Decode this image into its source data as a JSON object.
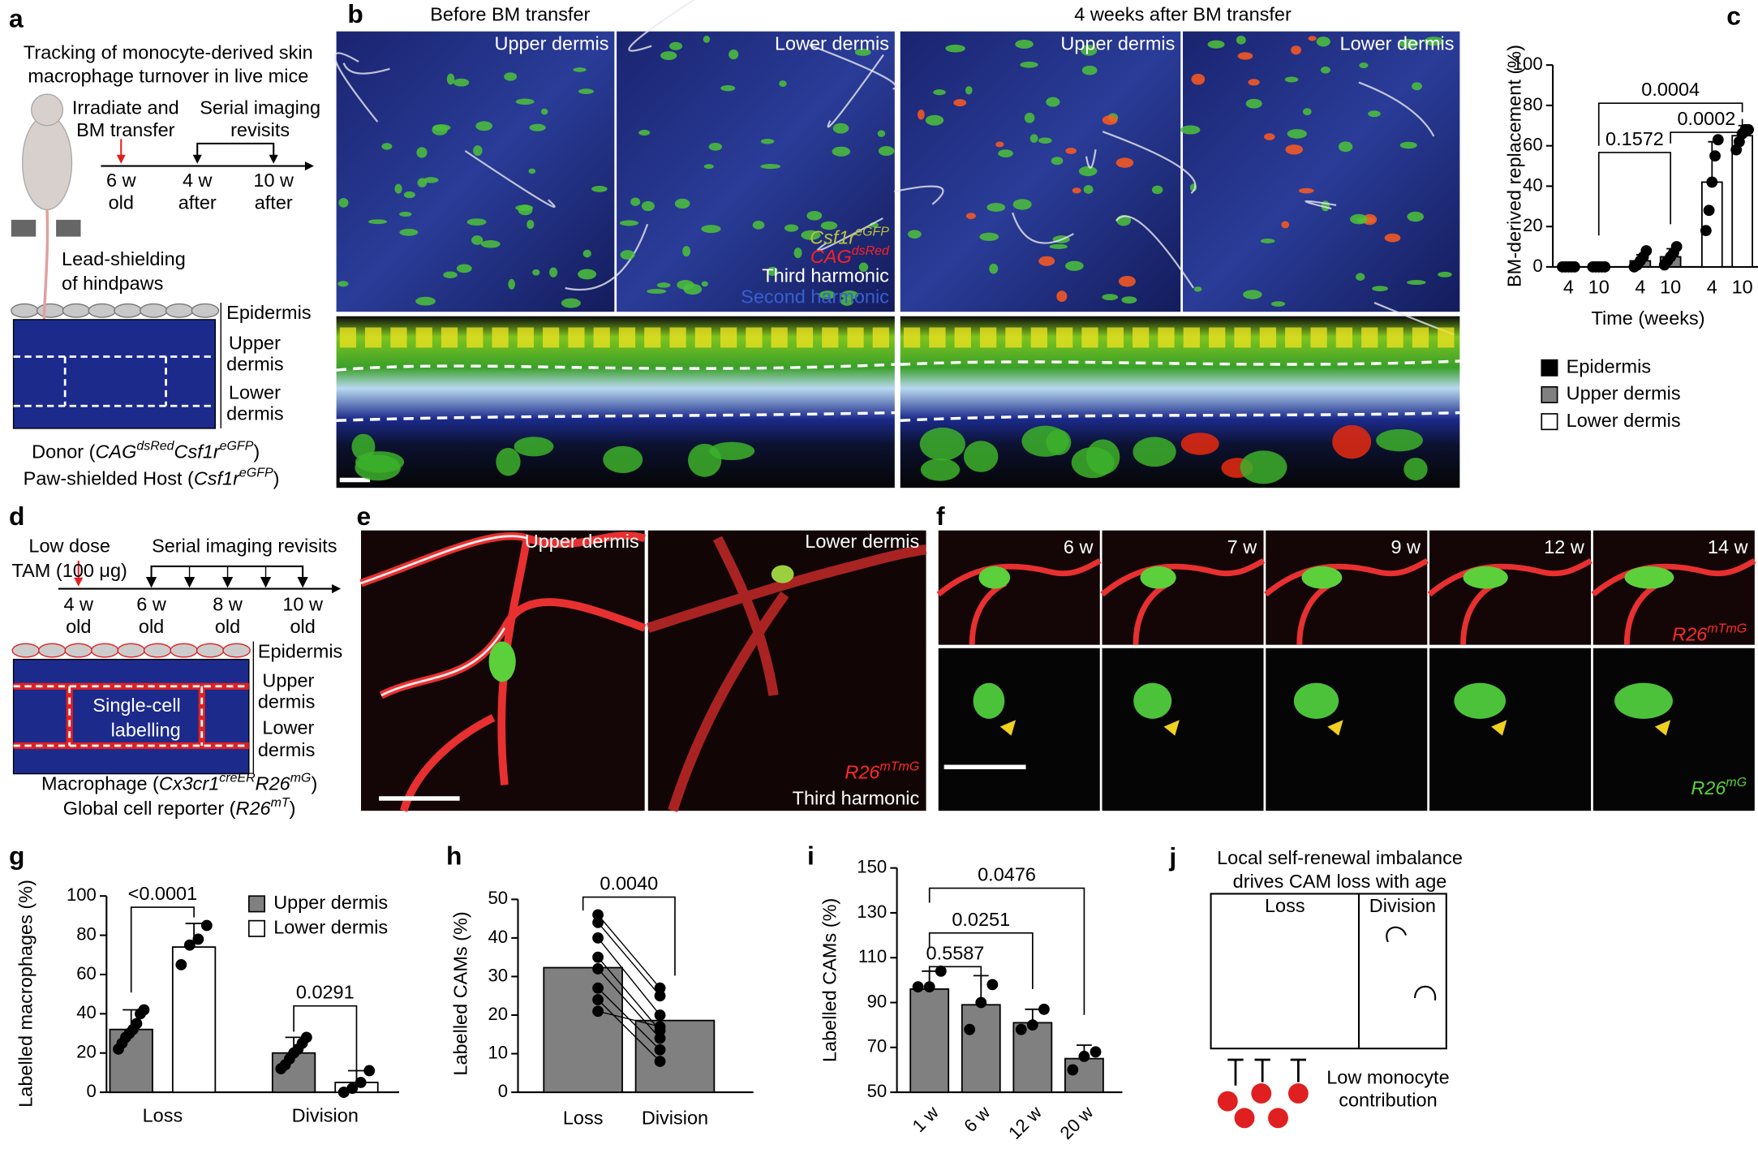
{
  "panels": {
    "a": {
      "letter": "a",
      "title": [
        "Tracking of monocyte-derived skin",
        "macrophage turnover in live mice"
      ],
      "step1": [
        "Irradiate and",
        "BM transfer"
      ],
      "step2": [
        "Serial imaging",
        "revisits"
      ],
      "timeline": [
        [
          "6 w",
          "old"
        ],
        [
          "4 w",
          "after"
        ],
        [
          "10 w",
          "after"
        ]
      ],
      "shield": [
        "Lead-shielding",
        "of hindpaws"
      ],
      "layers": [
        [
          "Epidermis"
        ],
        [
          "Upper",
          "dermis"
        ],
        [
          "Lower",
          "dermis"
        ]
      ],
      "donor": [
        [
          "Donor (",
          ""
        ],
        [
          "CAG",
          "i"
        ],
        [
          "dsRed",
          "si"
        ],
        [
          "Csf1r",
          "i"
        ],
        [
          "eGFP",
          "si"
        ],
        [
          ")",
          ""
        ]
      ],
      "host": [
        [
          "Paw-shielded Host (",
          ""
        ],
        [
          "Csf1r",
          "i"
        ],
        [
          "eGFP",
          "si"
        ],
        [
          ")",
          ""
        ]
      ]
    },
    "b": {
      "letter": "b",
      "headings": [
        "Before BM transfer",
        "4 weeks after BM transfer"
      ],
      "regions": [
        "Upper dermis",
        "Lower dermis",
        "Upper dermis",
        "Lower dermis"
      ],
      "channels": [
        {
          "label": [
            [
              "Csf1r",
              "i"
            ],
            [
              "eGFP",
              "si"
            ]
          ],
          "color": "#b8c43a"
        },
        {
          "label": [
            [
              "CAG",
              "i"
            ],
            [
              "dsRed",
              "si"
            ]
          ],
          "color": "#ff2020"
        },
        {
          "label": [
            [
              "Third harmonic",
              ""
            ]
          ],
          "color": "#ffffff"
        },
        {
          "label": [
            [
              "Second harmonic",
              ""
            ]
          ],
          "color": "#3a5fd0"
        }
      ]
    },
    "d": {
      "letter": "d",
      "dose": [
        "Low dose",
        "TAM (100 μg)"
      ],
      "revisits": "Serial imaging revisits",
      "timeline": [
        [
          "4 w",
          "old"
        ],
        [
          "6 w",
          "old"
        ],
        [
          "8 w",
          "old"
        ],
        [
          "10 w",
          "old"
        ]
      ],
      "layers": [
        [
          "Epidermis"
        ],
        [
          "Upper",
          "dermis"
        ],
        [
          "Lower",
          "dermis"
        ]
      ],
      "cell": [
        "Single-cell",
        "labelling"
      ],
      "macrophage": [
        [
          "Macrophage (",
          ""
        ],
        [
          "Cx3cr1",
          "i"
        ],
        [
          "creER",
          "si"
        ],
        [
          "R26",
          "i"
        ],
        [
          "mG",
          "si"
        ],
        [
          ")",
          ""
        ]
      ],
      "reporter": [
        [
          "Global cell reporter (",
          ""
        ],
        [
          "R26",
          "i"
        ],
        [
          "mT",
          "si"
        ],
        [
          ")",
          ""
        ]
      ]
    },
    "e": {
      "letter": "e",
      "regions": [
        "Upper dermis",
        "Lower dermis"
      ],
      "channels": [
        {
          "label": [
            [
              "R26",
              "i"
            ],
            [
              "mTmG",
              "si"
            ]
          ],
          "color": "#ff2a2a"
        },
        {
          "label": [
            [
              "Third harmonic",
              ""
            ]
          ],
          "color": "#ffffff"
        }
      ]
    },
    "f": {
      "letter": "f",
      "timepoints": [
        "6 w",
        "7 w",
        "9 w",
        "12 w",
        "14 w"
      ],
      "channels": [
        {
          "label": [
            [
              "R26",
              "i"
            ],
            [
              "mTmG",
              "si"
            ]
          ],
          "color": "#ff2a2a"
        },
        {
          "label": [
            [
              "R26",
              "i"
            ],
            [
              "mG",
              "si"
            ]
          ],
          "color": "#5cd03a"
        }
      ]
    },
    "j": {
      "letter": "j",
      "title": [
        "Local self-renewal imbalance",
        "drives CAM loss with age"
      ],
      "boxes": [
        "Loss",
        "Division"
      ],
      "note": [
        "Low monocyte",
        "contribution"
      ]
    }
  },
  "chart_data": [
    {
      "type": "bar",
      "letter": "c",
      "ylabel": "BM-derived replacement (%)",
      "xlabel": "Time (weeks)",
      "ylim": [
        0,
        100
      ],
      "yticks": [
        0,
        20,
        40,
        60,
        80,
        100
      ],
      "categories": [
        "4",
        "10"
      ],
      "series": [
        {
          "name": "Epidermis",
          "color": "#000000",
          "values": [
            0,
            0
          ],
          "errors": [
            0,
            0
          ],
          "points": [
            [
              0,
              0,
              0,
              0,
              0
            ],
            [
              0,
              0,
              0,
              0,
              0
            ]
          ]
        },
        {
          "name": "Upper dermis",
          "color": "#808080",
          "values": [
            3,
            5
          ],
          "errors": [
            3,
            4
          ],
          "points": [
            [
              0,
              1,
              3,
              5,
              8
            ],
            [
              1,
              3,
              5,
              7,
              10
            ]
          ]
        },
        {
          "name": "Lower dermis",
          "color": "#ffffff",
          "values": [
            42,
            65
          ],
          "errors": [
            20,
            5
          ],
          "points": [
            [
              18,
              28,
              42,
              55,
              63
            ],
            [
              58,
              62,
              66,
              68,
              68
            ]
          ]
        }
      ],
      "annotations": [
        "0.1572",
        "0.0004",
        "0.0002"
      ]
    },
    {
      "type": "bar",
      "letter": "g",
      "ylabel": "Labelled macrophages (%)",
      "ylim": [
        0,
        100
      ],
      "yticks": [
        0,
        20,
        40,
        60,
        80,
        100
      ],
      "categories": [
        "Loss",
        "Division"
      ],
      "series": [
        {
          "name": "Upper dermis",
          "color": "#808080",
          "values": [
            32,
            20
          ],
          "errors": [
            10,
            8
          ],
          "points": [
            [
              22,
              25,
              28,
              30,
              32,
              35,
              40,
              42
            ],
            [
              12,
              14,
              17,
              20,
              22,
              25,
              28
            ]
          ]
        },
        {
          "name": "Lower dermis",
          "color": "#ffffff",
          "values": [
            74,
            5
          ],
          "errors": [
            12,
            6
          ],
          "points": [
            [
              65,
              75,
              78,
              85
            ],
            [
              0,
              2,
              5,
              11
            ]
          ]
        }
      ],
      "annotations": [
        "<0.0001",
        "0.0291"
      ]
    },
    {
      "type": "bar",
      "letter": "h",
      "ylabel": "Labelled CAMs (%)",
      "paired": true,
      "ylim": [
        0,
        50
      ],
      "yticks": [
        0,
        10,
        20,
        30,
        40,
        50
      ],
      "categories": [
        "Loss",
        "Division"
      ],
      "series": [
        {
          "color": "#808080",
          "values": [
            32.3,
            18.6
          ],
          "points": [
            [
              46,
              44,
              40,
              35,
              32,
              27,
              24,
              21
            ],
            [
              27,
              25,
              20,
              16,
              14,
              11,
              8,
              17
            ]
          ]
        }
      ],
      "annotations": [
        "0.0040"
      ]
    },
    {
      "type": "bar",
      "letter": "i",
      "ylabel": "Labelled CAMs (%)",
      "ylim": [
        50,
        150
      ],
      "yticks": [
        50,
        70,
        90,
        110,
        130,
        150
      ],
      "categories": [
        "1 w",
        "6 w",
        "12 w",
        "20 w"
      ],
      "series": [
        {
          "color": "#808080",
          "values": [
            96,
            89,
            81,
            65
          ],
          "errors": [
            8,
            13,
            6,
            6
          ],
          "points": [
            [
              97,
              97,
              104
            ],
            [
              78,
              90,
              98
            ],
            [
              78,
              80,
              87
            ],
            [
              60,
              66,
              68
            ]
          ]
        }
      ],
      "annotations": [
        "0.5587",
        "0.0251",
        "0.0476"
      ]
    }
  ]
}
